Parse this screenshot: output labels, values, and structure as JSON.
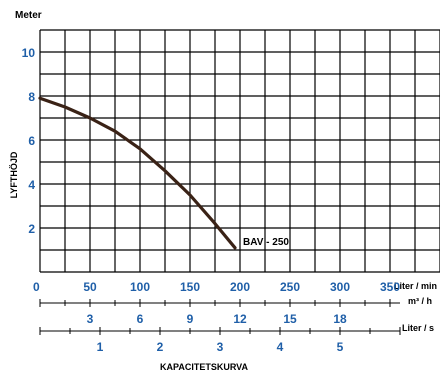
{
  "chart_data": {
    "type": "line",
    "y_unit": "Meter",
    "ylabel": "LYFTHÖJD",
    "xlabel": "KAPACITETSKURVA",
    "ylim": [
      0,
      11
    ],
    "xlim": [
      0,
      400
    ],
    "y_ticks": [
      2,
      4,
      6,
      8,
      10
    ],
    "x_ticks": [
      0,
      50,
      100,
      150,
      200,
      250,
      300,
      350
    ],
    "x_unit": "Liter / min",
    "m3h_ticks": [
      3,
      6,
      9,
      12,
      15,
      18
    ],
    "m3h_unit": "m³ / h",
    "ls_ticks": [
      1,
      2,
      3,
      4,
      5
    ],
    "ls_unit": "Liter / s",
    "grid": true,
    "series": [
      {
        "name": "BAV - 250",
        "x": [
          0,
          25,
          50,
          75,
          100,
          125,
          150,
          175,
          195
        ],
        "y": [
          7.9,
          7.5,
          7.0,
          6.4,
          5.6,
          4.6,
          3.5,
          2.2,
          1.1
        ]
      }
    ]
  },
  "colors": {
    "grid": "#000000",
    "tick_labels": "#1f5fa8",
    "curve": "#3a2216"
  }
}
